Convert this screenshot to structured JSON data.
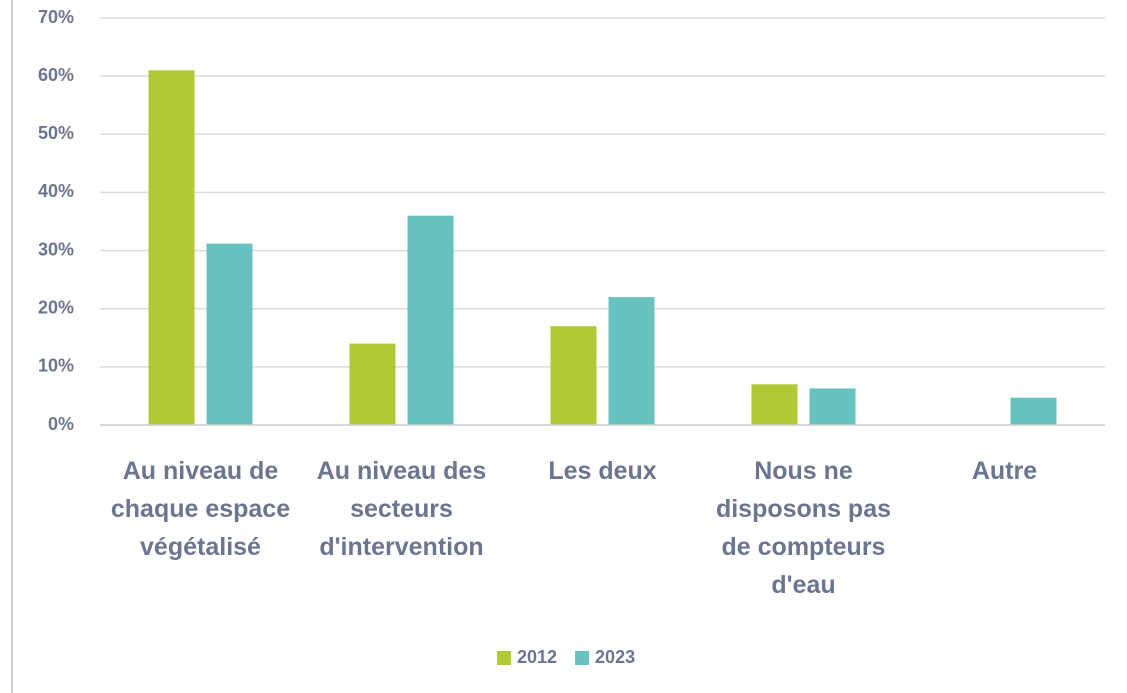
{
  "chart_data": {
    "type": "bar",
    "categories": [
      "Au niveau de chaque espace végétalisé",
      "Au niveau des secteurs d'intervention",
      "Les deux",
      "Nous ne disposons pas de compteurs d'eau",
      "Autre"
    ],
    "series": [
      {
        "name": "2012",
        "color": "#b0ca37",
        "values": [
          61,
          14,
          17,
          7,
          null
        ]
      },
      {
        "name": "2023",
        "color": "#68c2bf",
        "values": [
          31.2,
          36,
          22,
          6.3,
          4.7
        ]
      }
    ],
    "ylim": [
      0,
      70
    ],
    "yticks": [
      {
        "value": 0,
        "label": "0%"
      },
      {
        "value": 10,
        "label": "10%"
      },
      {
        "value": 20,
        "label": "20%"
      },
      {
        "value": 30,
        "label": "30%"
      },
      {
        "value": 40,
        "label": "40%"
      },
      {
        "value": 50,
        "label": "50%"
      },
      {
        "value": 60,
        "label": "60%"
      },
      {
        "value": 70,
        "label": "70%"
      }
    ],
    "grid": true,
    "legend": "bottom"
  }
}
